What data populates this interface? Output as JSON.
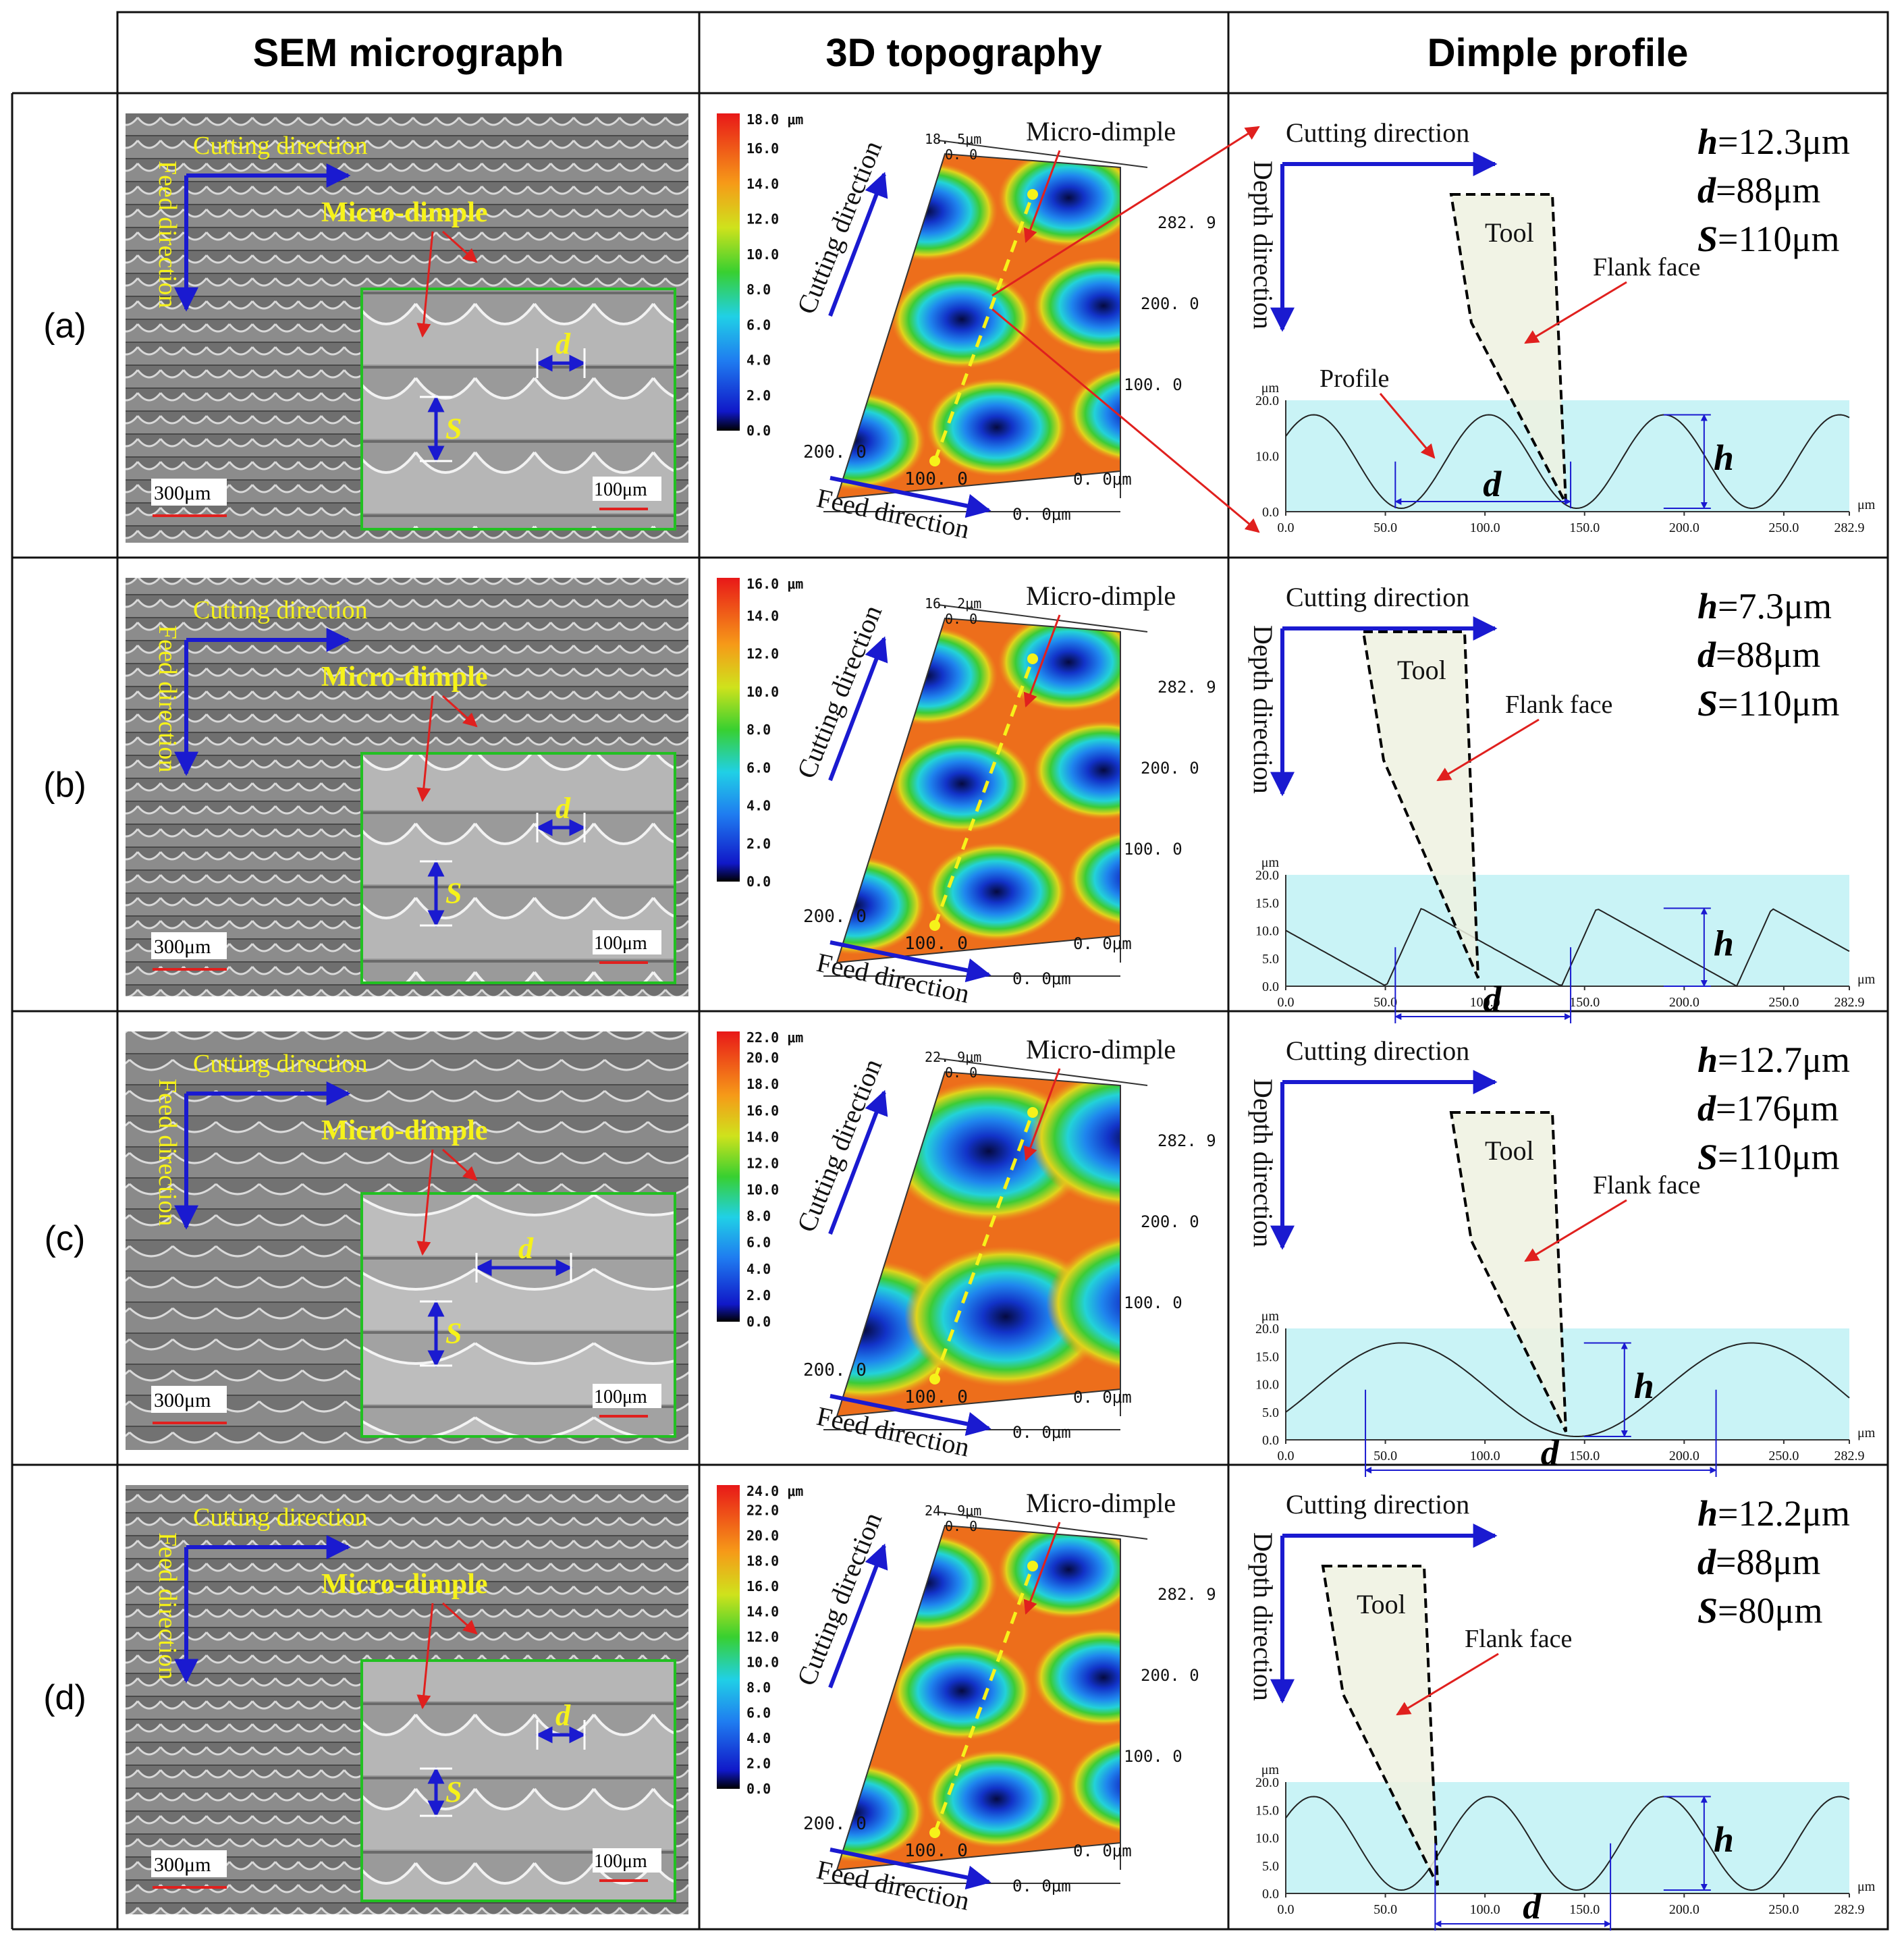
{
  "headers": {
    "col1": "SEM micrograph",
    "col2": "3D topography",
    "col3": "Dimple profile"
  },
  "common": {
    "cutting_direction": "Cutting direction",
    "feed_direction": "Feed direction",
    "depth_direction": "Depth direction",
    "micro_dimple_bold": "Micro-dimple",
    "micro_dimple": "Micro-dimple",
    "tool": "Tool",
    "flank_face": "Flank face",
    "profile": "Profile",
    "scale_large": "300μm",
    "scale_small": "100μm",
    "sym_d": "d",
    "sym_S": "S",
    "sym_h": "h",
    "axis_unit": "μm",
    "axis_unit_xy": "0. 0μm",
    "cm_ticks": "0.0",
    "x_ticks": [
      "0.0",
      "50.0",
      "100.0",
      "150.0",
      "200.0",
      "250.0",
      "282.9"
    ],
    "y_ticks": [
      "0.0",
      "5.0",
      "10.0",
      "15.0",
      "20.0"
    ],
    "topo_ticks": [
      "282. 9",
      "200. 0",
      "100. 0"
    ],
    "topo_feed_ticks": [
      "200. 0",
      "100. 0"
    ],
    "topo_origin": "0. 0"
  },
  "rows": [
    {
      "label": "(a)",
      "h_label": "h",
      "h_val": "=12.3μm",
      "d_label": "d",
      "d_val": "=88μm",
      "s_label": "S",
      "s_val": "=110μm",
      "cm_max": "18.0 μm",
      "cm_ticks": [
        "16.0",
        "14.0",
        "12.0",
        "10.0",
        "8.0",
        "6.0",
        "4.0",
        "2.0",
        "0.0"
      ],
      "z_top": "18. 5μm",
      "y_ticks": [
        "0.0",
        "10.0",
        "20.0"
      ]
    },
    {
      "label": "(b)",
      "h_label": "h",
      "h_val": "=7.3μm",
      "d_label": "d",
      "d_val": "=88μm",
      "s_label": "S",
      "s_val": "=110μm",
      "cm_max": "16.0 μm",
      "cm_ticks": [
        "14.0",
        "12.0",
        "10.0",
        "8.0",
        "6.0",
        "4.0",
        "2.0",
        "0.0"
      ],
      "z_top": "16. 2μm",
      "y_ticks": [
        "0.0",
        "5.0",
        "10.0",
        "15.0",
        "20.0"
      ]
    },
    {
      "label": "(c)",
      "h_label": "h",
      "h_val": "=12.7μm",
      "d_label": "d",
      "d_val": "=176μm",
      "s_label": "S",
      "s_val": "=110μm",
      "cm_max": "22.0 μm",
      "cm_ticks": [
        "20.0",
        "18.0",
        "16.0",
        "14.0",
        "12.0",
        "10.0",
        "8.0",
        "6.0",
        "4.0",
        "2.0",
        "0.0"
      ],
      "z_top": "22. 9μm",
      "y_ticks": [
        "0.0",
        "5.0",
        "10.0",
        "15.0",
        "20.0"
      ]
    },
    {
      "label": "(d)",
      "h_label": "h",
      "h_val": "=12.2μm",
      "d_label": "d",
      "d_val": "=88μm",
      "s_label": "S",
      "s_val": "=80μm",
      "cm_max": "24.0 μm",
      "cm_ticks": [
        "22.0",
        "20.0",
        "18.0",
        "16.0",
        "14.0",
        "12.0",
        "10.0",
        "8.0",
        "6.0",
        "4.0",
        "2.0",
        "0.0"
      ],
      "z_top": "24. 9μm",
      "y_ticks": [
        "0.0",
        "5.0",
        "10.0",
        "15.0",
        "20.0"
      ]
    }
  ],
  "colors": {
    "blue_arrow": "#1a1ad0",
    "red_arrow": "#e0201e",
    "yellow_text": "#f6f21a",
    "inset_border": "#22c022",
    "profile_bg": "#c9f3f6",
    "tool_fill": "#eef1e0"
  }
}
